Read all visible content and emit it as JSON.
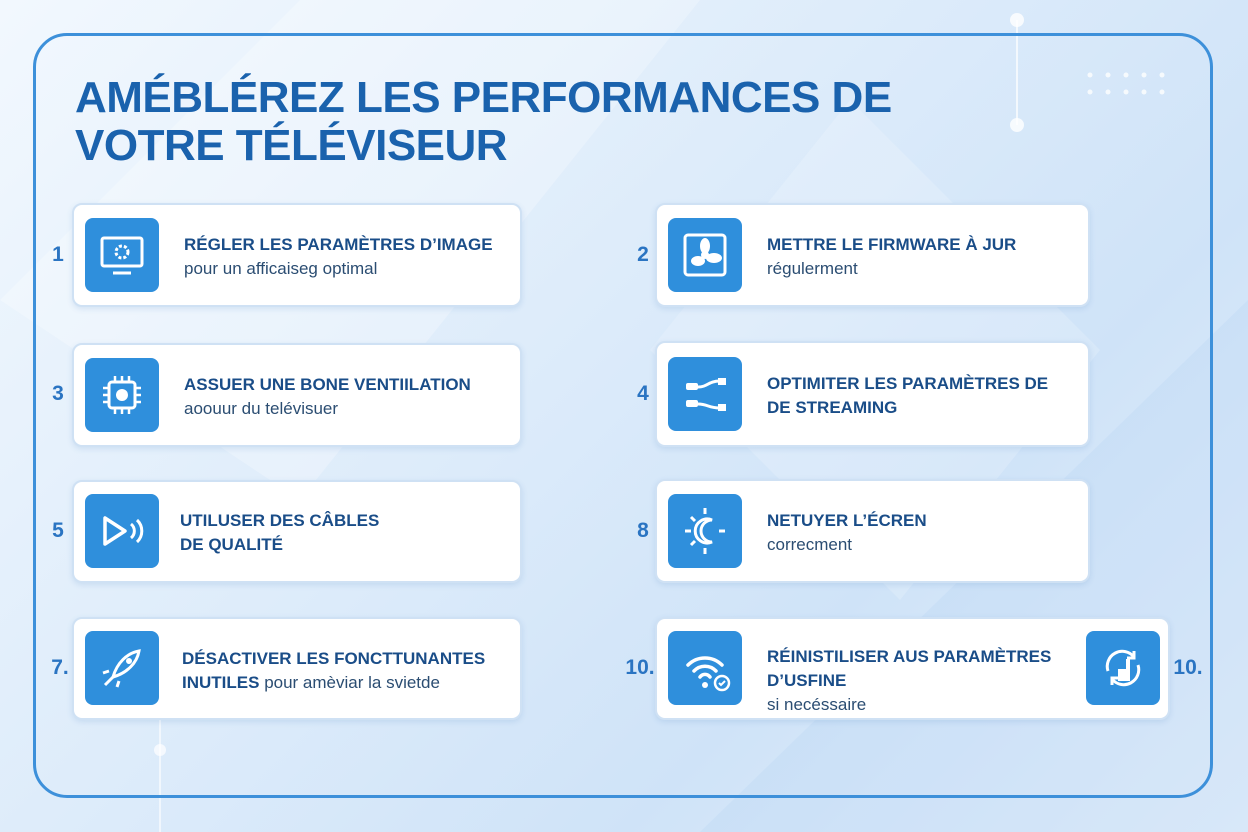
{
  "title": [
    "AMÉBLÉREZ LES PERFORMANCES DE",
    "VOTRE TÉLÉVISEUR"
  ],
  "items": [
    {
      "number": "1",
      "lines": [
        {
          "strong": "RÉGLER LES PARAMÈTRES D’IMAGE"
        },
        {
          "plain": "pour un afficaiseg optimal"
        }
      ]
    },
    {
      "number": "2",
      "lines": [
        {
          "strong": "METTRE LE FIRMWARE À JUR"
        },
        {
          "plain": "régulerment"
        }
      ]
    },
    {
      "number": "3",
      "lines": [
        {
          "strong": "ASSUER UNE BONE VENTIILATION"
        },
        {
          "plain": "aoouur du telévisuer"
        }
      ]
    },
    {
      "number": "4",
      "lines": [
        {
          "strong": "OPTIMITER LES PARAMÈTRES DE"
        },
        {
          "strong": "DE STREAMING"
        }
      ]
    },
    {
      "number": "5",
      "lines": [
        {
          "strong": "UTILUSER DES CÂBLES"
        },
        {
          "strong": "DE QUALITÉ"
        }
      ]
    },
    {
      "number": "8",
      "lines": [
        {
          "strong": "NETUYER L’ÉCREN"
        },
        {
          "plain": "correcment"
        }
      ]
    },
    {
      "number": "7.",
      "lines": [
        {
          "strong": "DÉSACTIVER LES FONCTTUNANTES"
        },
        {
          "strong": "INUTILES",
          "plain": "pour amèviar la svietde"
        }
      ]
    },
    {
      "number": "10.",
      "side_number": "10.",
      "lines": [
        {
          "strong": "RÉINISTILISER AUS PARAMÈTRES"
        },
        {
          "strong": "D’USFINE"
        },
        {
          "plain": "si necéssaire"
        }
      ]
    }
  ]
}
